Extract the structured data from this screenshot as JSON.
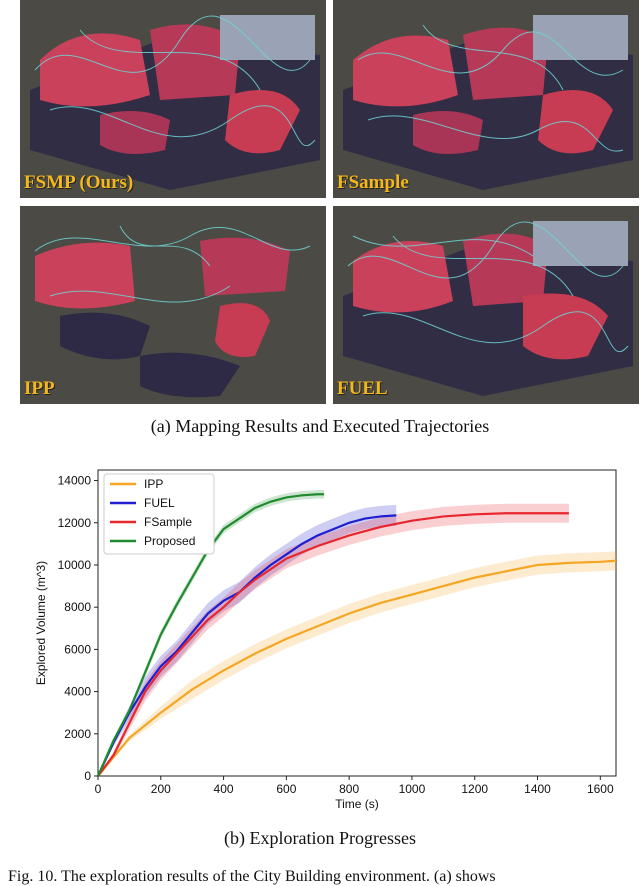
{
  "panels": [
    {
      "label": "FSMP (Ours)"
    },
    {
      "label": "FSample"
    },
    {
      "label": "IPP"
    },
    {
      "label": "FUEL"
    }
  ],
  "caption_a": "(a)  Mapping Results and Executed Trajectories",
  "caption_b": "(b)  Exploration Progresses",
  "footer_text": "Fig. 10.   The exploration results of the City Building environment. (a) shows",
  "colors": {
    "panel_bg": "#4b4a44",
    "label": "#f4b81c",
    "IPP": "#f5a623",
    "FUEL": "#1f1fd1",
    "FSample": "#e8262e",
    "Proposed": "#1f8a2e"
  },
  "chart_data": {
    "type": "line",
    "xlabel": "Time (s)",
    "ylabel": "Explored Volume (m^3)",
    "xlim": [
      0,
      1650
    ],
    "ylim": [
      0,
      14500
    ],
    "xticks": [
      0,
      200,
      400,
      600,
      800,
      1000,
      1200,
      1400,
      1600
    ],
    "yticks": [
      0,
      2000,
      4000,
      6000,
      8000,
      10000,
      12000,
      14000
    ],
    "legend_position": "top-left",
    "grid": false,
    "series": [
      {
        "name": "IPP",
        "color": "#f5a623",
        "x": [
          0,
          100,
          200,
          300,
          400,
          500,
          600,
          700,
          800,
          900,
          1000,
          1100,
          1200,
          1300,
          1400,
          1500,
          1600,
          1650
        ],
        "y": [
          0,
          1800,
          3000,
          4100,
          5000,
          5800,
          6500,
          7100,
          7700,
          8200,
          8600,
          9000,
          9400,
          9700,
          10000,
          10100,
          10150,
          10200
        ],
        "band": 450
      },
      {
        "name": "FUEL",
        "color": "#1f1fd1",
        "x": [
          0,
          50,
          100,
          150,
          200,
          250,
          300,
          350,
          400,
          450,
          500,
          550,
          600,
          650,
          700,
          750,
          800,
          850,
          900,
          950
        ],
        "y": [
          0,
          1600,
          3000,
          4200,
          5200,
          5900,
          6800,
          7700,
          8300,
          8700,
          9400,
          10000,
          10500,
          11000,
          11400,
          11700,
          12000,
          12200,
          12300,
          12350
        ],
        "band": 500
      },
      {
        "name": "FSample",
        "color": "#e8262e",
        "x": [
          0,
          50,
          100,
          150,
          200,
          250,
          300,
          350,
          400,
          450,
          500,
          600,
          700,
          800,
          900,
          1000,
          1100,
          1200,
          1300,
          1400,
          1500
        ],
        "y": [
          0,
          1000,
          2500,
          4000,
          5000,
          5800,
          6600,
          7400,
          8000,
          8700,
          9300,
          10300,
          10900,
          11400,
          11800,
          12100,
          12300,
          12400,
          12450,
          12450,
          12450
        ],
        "band": 450
      },
      {
        "name": "Proposed",
        "color": "#1f8a2e",
        "x": [
          0,
          50,
          100,
          150,
          200,
          250,
          300,
          350,
          400,
          450,
          500,
          550,
          600,
          650,
          700,
          720
        ],
        "y": [
          0,
          1700,
          3100,
          4900,
          6700,
          8100,
          9400,
          10700,
          11700,
          12200,
          12700,
          13000,
          13200,
          13300,
          13350,
          13350
        ],
        "band": 200
      }
    ]
  }
}
